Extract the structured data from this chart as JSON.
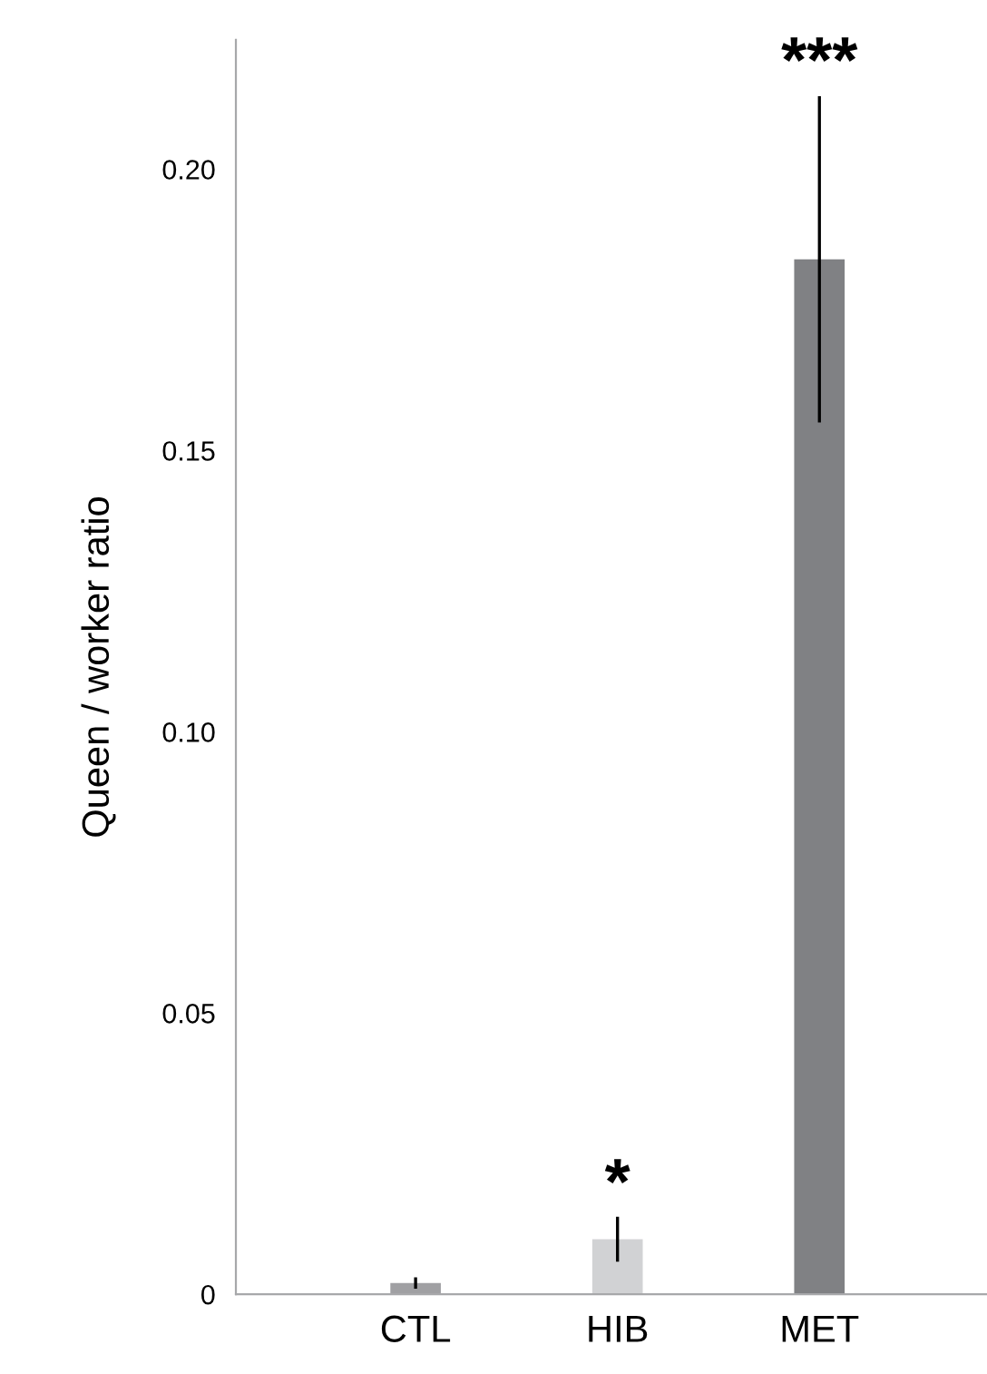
{
  "chart_data": {
    "type": "bar",
    "ylabel": "Queen / worker ratio",
    "categories": [
      "CTL",
      "HIB",
      "MET"
    ],
    "values": [
      0.002,
      0.0098,
      0.184
    ],
    "colors": [
      "#a0a0a3",
      "#d1d2d4",
      "#808184"
    ],
    "errors": [
      0.001,
      0.004,
      0.029
    ],
    "ylim": [
      0,
      0.223
    ],
    "yticks": [
      0,
      {
        "value": 0.05,
        "label": "0.05"
      },
      {
        "value": 0.1,
        "label": "0.10"
      },
      {
        "value": 0.15,
        "label": "0.15"
      },
      {
        "value": 0.2,
        "label": "0.20"
      }
    ],
    "grid": false,
    "annotations": [
      {
        "text": "*",
        "x": "HIB",
        "y": 0.0136
      },
      {
        "text": "***",
        "x": "MET",
        "y": 0.213
      }
    ]
  }
}
